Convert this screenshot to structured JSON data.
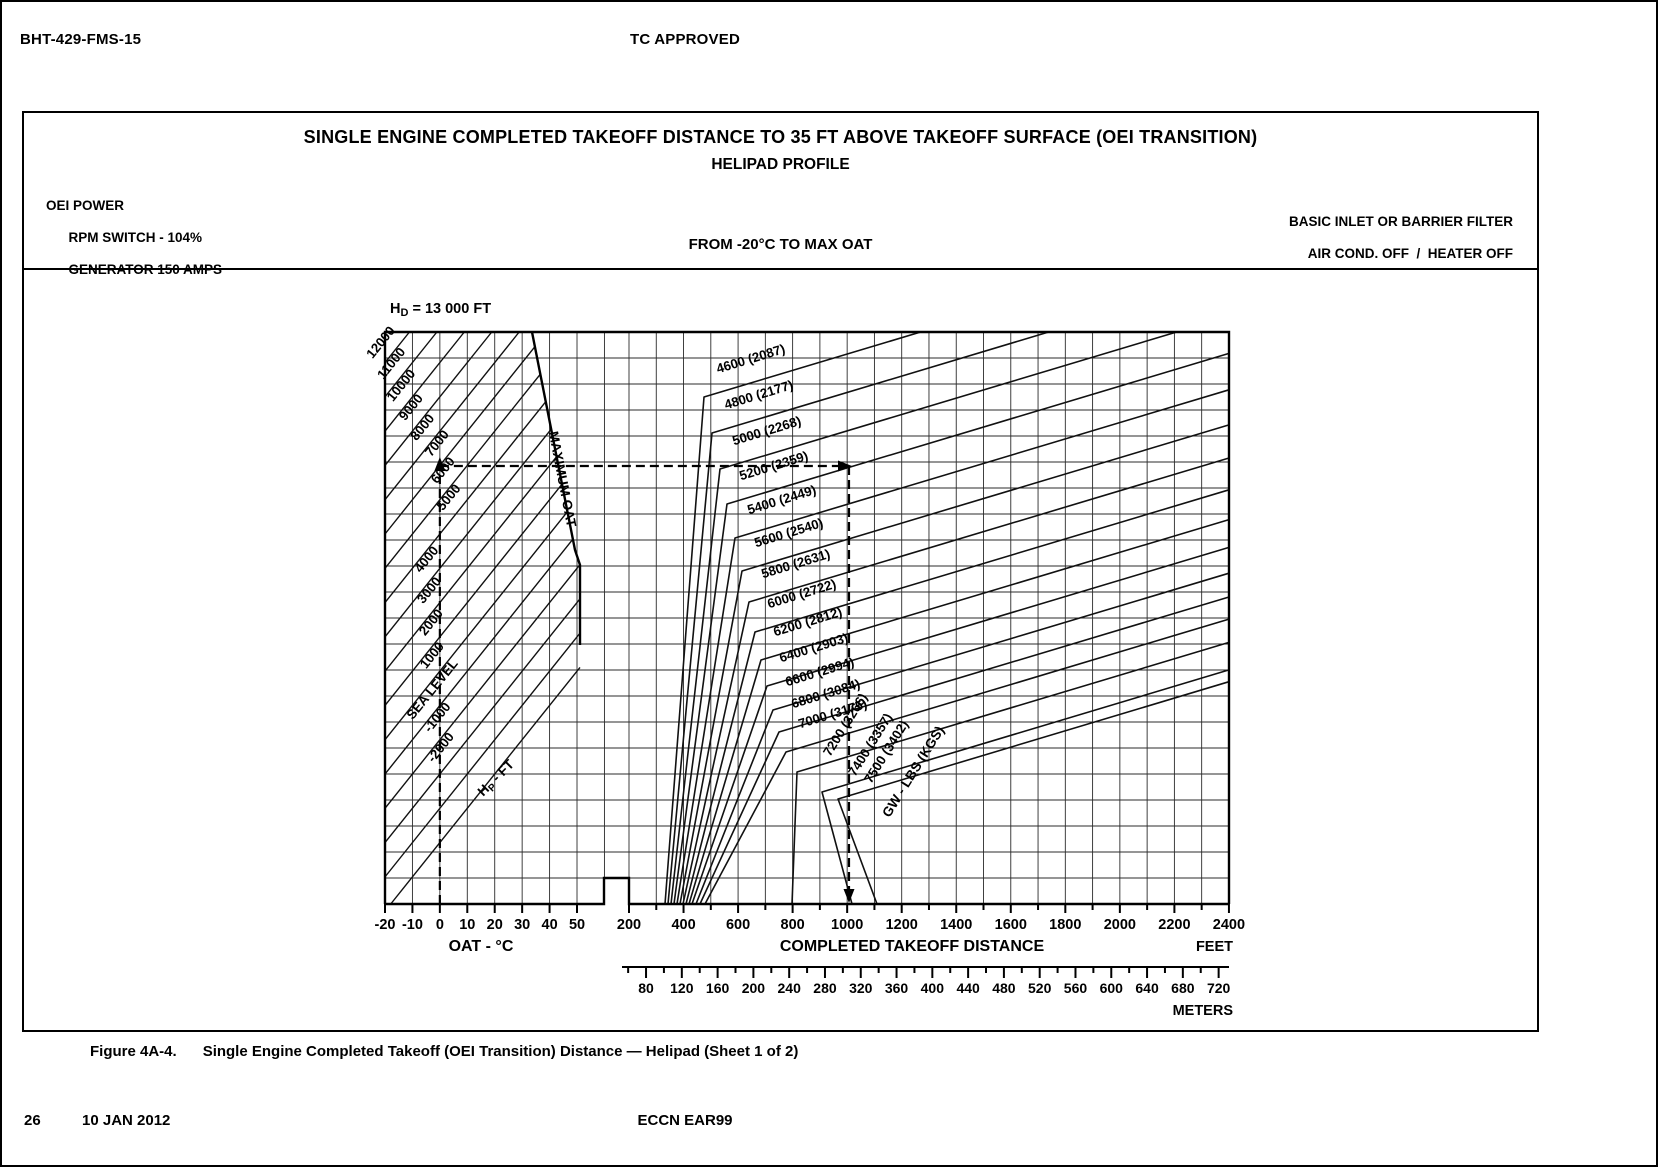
{
  "page": {
    "doc_ref": "BHT-429-FMS-15",
    "approval_stamp": "TC APPROVED",
    "caption": {
      "figure_label": "Figure 4A-4.",
      "text": "Single Engine Completed Takeoff (OEI Transition) Distance — Helipad (Sheet 1 of 2)"
    },
    "footer": {
      "page_number": "26",
      "date": "10 JAN 2012",
      "eccn": "ECCN EAR99"
    }
  },
  "panel": {
    "title": "SINGLE ENGINE COMPLETED TAKEOFF DISTANCE TO 35 FT ABOVE TAKEOFF SURFACE  (OEI TRANSITION)",
    "subtitle": "HELIPAD PROFILE",
    "conditions_left": [
      "OEI POWER",
      "RPM SWITCH - 104%",
      "GENERATOR 150 AMPS"
    ],
    "condition_center": "FROM -20°C TO MAX OAT",
    "conditions_right": [
      "BASIC INLET OR BARRIER FILTER",
      "AIR COND. OFF  /  HEATER OFF"
    ]
  },
  "chart_data": {
    "type": "line",
    "description": "Nomograph: OAT and pressure altitude (left carpet) determine a level that is carried right to the gross-weight guide lines to read completed takeoff distance.",
    "hd_label": {
      "pre": "H",
      "sub": "D",
      "post": " = 13 000 FT"
    },
    "max_oat_label": "MAXIMUM OAT",
    "oat_axis": {
      "label": "OAT - °C",
      "min": -20,
      "max": 50,
      "ticks": [
        -20,
        -10,
        0,
        10,
        20,
        30,
        40,
        50
      ]
    },
    "distance_axis": {
      "label": "COMPLETED TAKEOFF DISTANCE",
      "unit": "FEET",
      "min": 200,
      "max": 2400,
      "ticks": [
        200,
        400,
        600,
        800,
        1000,
        1200,
        1400,
        1600,
        1800,
        2000,
        2200,
        2400
      ],
      "minor_step": 100
    },
    "meters_axis": {
      "unit": "METERS",
      "ticks": [
        80,
        120,
        160,
        200,
        240,
        280,
        320,
        360,
        400,
        440,
        480,
        520,
        560,
        600,
        640,
        680,
        720
      ],
      "minor_step": 20
    },
    "altitude_series": {
      "axis_label": {
        "pre": "H",
        "sub": "P",
        "post": " - FT"
      },
      "lines": [
        {
          "value": 12000,
          "label": "12000"
        },
        {
          "value": 11000,
          "label": "11000"
        },
        {
          "value": 10000,
          "label": "10000"
        },
        {
          "value": 9000,
          "label": "9000"
        },
        {
          "value": 8000,
          "label": "8000"
        },
        {
          "value": 7000,
          "label": "7000"
        },
        {
          "value": 6000,
          "label": "6000"
        },
        {
          "value": 5000,
          "label": "5000"
        },
        {
          "value": 4000,
          "label": "4000"
        },
        {
          "value": 3000,
          "label": "3000"
        },
        {
          "value": 2000,
          "label": "2000"
        },
        {
          "value": 1000,
          "label": "1000"
        },
        {
          "value": 0,
          "label": "SEA LEVEL"
        },
        {
          "value": -1000,
          "label": "-1000"
        },
        {
          "value": -2000,
          "label": "-2000"
        },
        {
          "value": -3000,
          "label": ""
        },
        {
          "value": -4000,
          "label": ""
        }
      ]
    },
    "weight_series": {
      "legend": "GW - LBS (KGS)",
      "lines": [
        {
          "lbs": 4600,
          "kgs": 2087,
          "label": "4600 (2087)"
        },
        {
          "lbs": 4800,
          "kgs": 2177,
          "label": "4800 (2177)"
        },
        {
          "lbs": 5000,
          "kgs": 2268,
          "label": "5000 (2268)"
        },
        {
          "lbs": 5200,
          "kgs": 2359,
          "label": "5200 (2359)"
        },
        {
          "lbs": 5400,
          "kgs": 2449,
          "label": "5400 (2449)"
        },
        {
          "lbs": 5600,
          "kgs": 2540,
          "label": "5600 (2540)"
        },
        {
          "lbs": 5800,
          "kgs": 2631,
          "label": "5800 (2631)"
        },
        {
          "lbs": 6000,
          "kgs": 2722,
          "label": "6000 (2722)"
        },
        {
          "lbs": 6200,
          "kgs": 2812,
          "label": "6200 (2812)"
        },
        {
          "lbs": 6400,
          "kgs": 2903,
          "label": "6400 (2903)"
        },
        {
          "lbs": 6600,
          "kgs": 2994,
          "label": "6600 (2994)"
        },
        {
          "lbs": 6800,
          "kgs": 3084,
          "label": "6800 (3084)"
        },
        {
          "lbs": 7000,
          "kgs": 3175,
          "label": "7000 (3175)"
        },
        {
          "lbs": 7200,
          "kgs": 3266,
          "label": "7200 (3266)"
        },
        {
          "lbs": 7400,
          "kgs": 3357,
          "label": "7400 (3357)"
        },
        {
          "lbs": 7500,
          "kgs": 3402,
          "label": "7500 (3402)"
        }
      ]
    },
    "example": {
      "oat_c": 0,
      "pressure_altitude_ft": 7000,
      "weight_lbs": 5200,
      "distance_ft": 1000
    }
  }
}
